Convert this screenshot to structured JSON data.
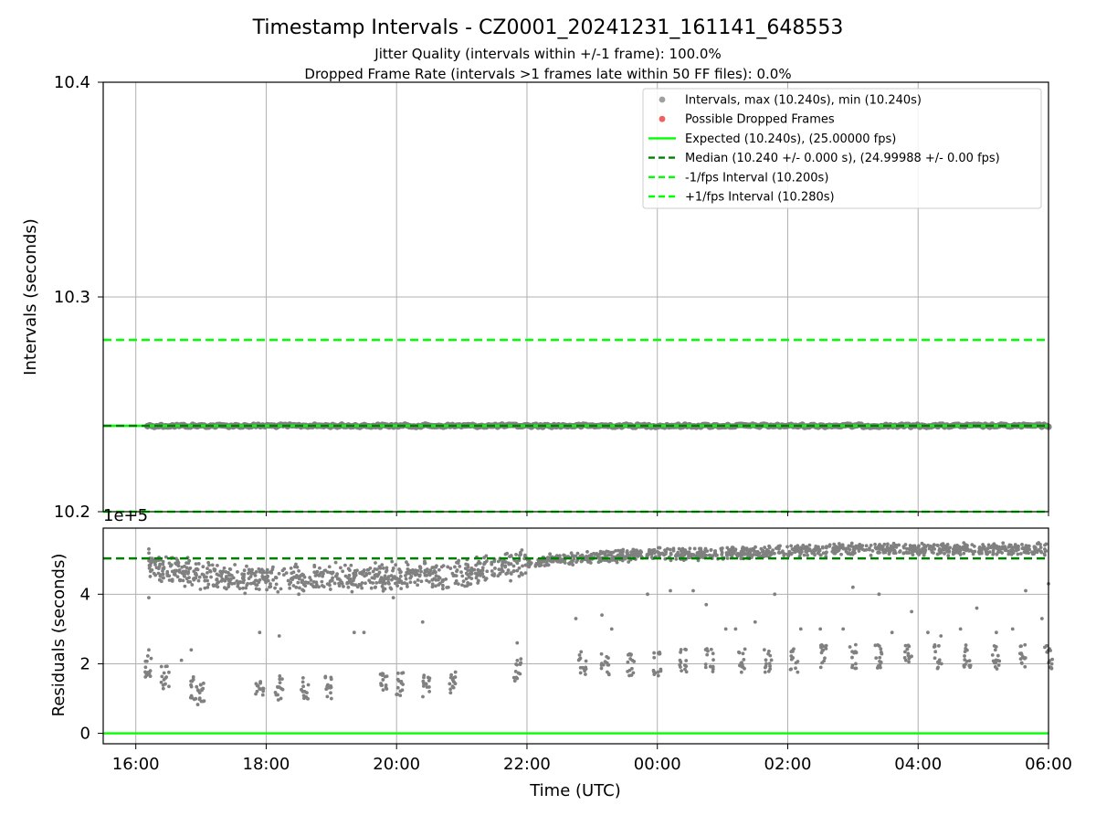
{
  "title": "Timestamp Intervals - CZ0001_20241231_161141_648553",
  "subtitle_1": "Jitter Quality (intervals within +/-1 frame): 100.0%",
  "subtitle_2": "Dropped Frame Rate (intervals >1 frames late within 50 FF files): 0.0%",
  "colors": {
    "grid": "#b0b0b0",
    "points": "#808080",
    "expected": "#00ff00",
    "median": "#008000",
    "fps_bounds": "#00ff00",
    "dropped": "#ff0000"
  },
  "chart_data": [
    {
      "type": "scatter",
      "panel": "intervals",
      "ylabel": "Intervals (seconds)",
      "xlabel": "",
      "xlim": [
        -0.5,
        14.0
      ],
      "ylim": [
        10.2,
        10.4
      ],
      "x_ticks": [
        0,
        2,
        4,
        6,
        8,
        10,
        12,
        14
      ],
      "y_ticks": [
        10.2,
        10.3,
        10.4
      ],
      "y_tick_labels": [
        "10.2",
        "10.3",
        "10.4"
      ],
      "grid": true,
      "legend_position": "top-right",
      "legend": [
        {
          "label": "Intervals, max (10.240s), min (10.240s)",
          "kind": "marker",
          "color": "#a0a0a0"
        },
        {
          "label": "Possible Dropped Frames",
          "kind": "marker",
          "color": "#f06060"
        },
        {
          "label": "Expected (10.240s), (25.00000 fps)",
          "kind": "solid",
          "color": "#00ff00"
        },
        {
          "label": "Median (10.240 +/- 0.000 s), (24.99988 +/- 0.00 fps)",
          "kind": "dashed",
          "color": "#008000"
        },
        {
          "label": "-1/fps Interval (10.200s)",
          "kind": "dashed",
          "color": "#00ff00"
        },
        {
          "label": "+1/fps Interval (10.280s)",
          "kind": "dashed",
          "color": "#00ff00"
        }
      ],
      "series": [
        {
          "name": "Intervals",
          "x_range": [
            0.18,
            14.0
          ],
          "y": 10.24,
          "count": 400
        }
      ],
      "reference_lines": [
        {
          "name": "Expected",
          "y": 10.24,
          "style": "solid"
        },
        {
          "name": "Median",
          "y": 10.24,
          "style": "dashed"
        },
        {
          "name": "-1/fps Interval",
          "y": 10.2,
          "style": "dashed"
        },
        {
          "name": "+1/fps Interval",
          "y": 10.28,
          "style": "dashed"
        }
      ]
    },
    {
      "type": "scatter",
      "panel": "residuals",
      "ylabel": "Residuals (seconds)",
      "xlabel": "Time (UTC)",
      "y_scale_label": "1e+5",
      "xlim": [
        -0.5,
        14.0
      ],
      "ylim": [
        -0.3,
        5.9
      ],
      "x_ticks": [
        0,
        2,
        4,
        6,
        8,
        10,
        12,
        14
      ],
      "x_tick_labels": [
        "16:00",
        "18:00",
        "20:00",
        "22:00",
        "00:00",
        "02:00",
        "04:00",
        "06:00"
      ],
      "y_ticks": [
        0,
        2,
        4
      ],
      "y_tick_labels": [
        "0",
        "2",
        "4"
      ],
      "grid": true,
      "reference_lines": [
        {
          "name": "Expected",
          "y": 0,
          "style": "solid"
        },
        {
          "name": "Median",
          "y": 5.03,
          "style": "dashed"
        }
      ],
      "main_band": [
        [
          0.2,
          4.85
        ],
        [
          0.5,
          4.7
        ],
        [
          1.0,
          4.55
        ],
        [
          1.5,
          4.45
        ],
        [
          2.0,
          4.45
        ],
        [
          2.5,
          4.45
        ],
        [
          3.0,
          4.5
        ],
        [
          3.5,
          4.5
        ],
        [
          4.0,
          4.5
        ],
        [
          4.5,
          4.55
        ],
        [
          5.0,
          4.6
        ],
        [
          5.5,
          4.75
        ],
        [
          6.0,
          4.9
        ],
        [
          6.5,
          5.0
        ],
        [
          7.0,
          5.05
        ],
        [
          7.5,
          5.1
        ],
        [
          8.0,
          5.15
        ],
        [
          8.5,
          5.15
        ],
        [
          9.0,
          5.2
        ],
        [
          9.5,
          5.2
        ],
        [
          10.0,
          5.25
        ],
        [
          10.5,
          5.25
        ],
        [
          11.0,
          5.3
        ],
        [
          11.5,
          5.3
        ],
        [
          12.0,
          5.3
        ],
        [
          12.5,
          5.3
        ],
        [
          13.0,
          5.3
        ],
        [
          13.5,
          5.3
        ],
        [
          14.0,
          5.3
        ]
      ],
      "low_clusters": [
        [
          0.2,
          1.9
        ],
        [
          0.45,
          1.6
        ],
        [
          0.9,
          1.3
        ],
        [
          1.0,
          1.1
        ],
        [
          1.9,
          1.3
        ],
        [
          2.2,
          1.3
        ],
        [
          2.6,
          1.3
        ],
        [
          2.95,
          1.3
        ],
        [
          3.8,
          1.4
        ],
        [
          4.05,
          1.4
        ],
        [
          4.45,
          1.4
        ],
        [
          4.85,
          1.5
        ],
        [
          5.85,
          1.8
        ],
        [
          6.85,
          2.0
        ],
        [
          7.2,
          2.0
        ],
        [
          7.6,
          2.0
        ],
        [
          8.0,
          2.0
        ],
        [
          8.4,
          2.1
        ],
        [
          8.8,
          2.1
        ],
        [
          9.3,
          2.1
        ],
        [
          9.7,
          2.1
        ],
        [
          10.1,
          2.1
        ],
        [
          10.55,
          2.2
        ],
        [
          11.0,
          2.2
        ],
        [
          11.4,
          2.2
        ],
        [
          11.85,
          2.2
        ],
        [
          12.3,
          2.2
        ],
        [
          12.75,
          2.2
        ],
        [
          13.2,
          2.2
        ],
        [
          13.6,
          2.2
        ],
        [
          14.0,
          2.2
        ]
      ],
      "outliers": [
        [
          0.2,
          5.3
        ],
        [
          0.2,
          3.9
        ],
        [
          0.2,
          2.4
        ],
        [
          0.7,
          2.1
        ],
        [
          0.85,
          2.4
        ],
        [
          1.9,
          2.9
        ],
        [
          2.2,
          2.8
        ],
        [
          2.5,
          4.0
        ],
        [
          3.35,
          2.9
        ],
        [
          3.5,
          2.9
        ],
        [
          3.95,
          3.9
        ],
        [
          4.4,
          3.2
        ],
        [
          5.85,
          2.6
        ],
        [
          6.75,
          3.3
        ],
        [
          7.15,
          3.4
        ],
        [
          7.3,
          3.0
        ],
        [
          7.85,
          4.0
        ],
        [
          8.2,
          4.1
        ],
        [
          8.55,
          4.1
        ],
        [
          8.75,
          3.7
        ],
        [
          9.05,
          3.0
        ],
        [
          9.2,
          3.0
        ],
        [
          9.5,
          3.2
        ],
        [
          9.8,
          4.0
        ],
        [
          10.2,
          3.0
        ],
        [
          10.5,
          3.0
        ],
        [
          10.85,
          3.0
        ],
        [
          11.0,
          4.2
        ],
        [
          11.4,
          4.0
        ],
        [
          11.6,
          2.9
        ],
        [
          11.9,
          3.5
        ],
        [
          12.15,
          2.9
        ],
        [
          12.35,
          2.8
        ],
        [
          12.65,
          3.0
        ],
        [
          12.9,
          3.6
        ],
        [
          13.2,
          2.9
        ],
        [
          13.45,
          3.0
        ],
        [
          13.65,
          4.1
        ],
        [
          13.9,
          3.3
        ],
        [
          14.0,
          4.3
        ]
      ]
    }
  ]
}
